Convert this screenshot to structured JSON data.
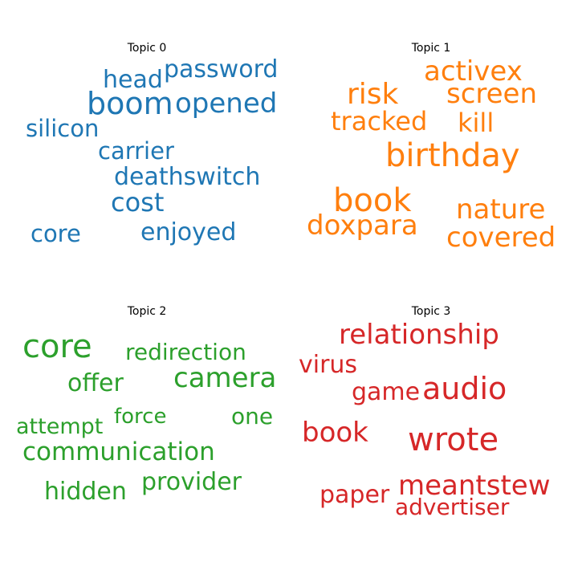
{
  "topics": [
    {
      "title": "Topic 0",
      "color": "#1f77b4",
      "words": [
        "head",
        "password",
        "boom",
        "opened",
        "silicon",
        "carrier",
        "deathswitch",
        "cost",
        "core",
        "enjoyed"
      ]
    },
    {
      "title": "Topic 1",
      "color": "#ff7f0e",
      "words": [
        "activex",
        "risk",
        "screen",
        "tracked",
        "kill",
        "birthday",
        "book",
        "nature",
        "doxpara",
        "covered"
      ]
    },
    {
      "title": "Topic 2",
      "color": "#2ca02c",
      "words": [
        "core",
        "redirection",
        "camera",
        "offer",
        "attempt",
        "force",
        "one",
        "communication",
        "provider",
        "hidden"
      ]
    },
    {
      "title": "Topic 3",
      "color": "#d62728",
      "words": [
        "relationship",
        "virus",
        "audio",
        "game",
        "book",
        "wrote",
        "meantstew",
        "paper",
        "advertiser"
      ]
    }
  ]
}
